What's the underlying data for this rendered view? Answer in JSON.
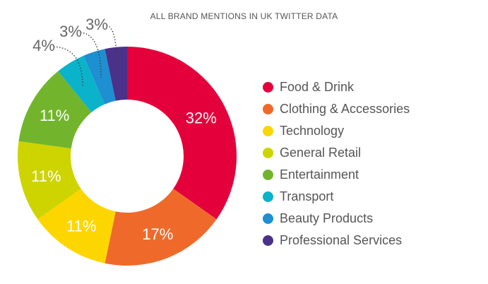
{
  "chart_data": {
    "type": "pie",
    "variant": "donut",
    "title": "ALL BRAND MENTIONS IN UK TWITTER DATA",
    "categories": [
      "Food & Drink",
      "Clothing & Accessories",
      "Technology",
      "General Retail",
      "Entertainment",
      "Transport",
      "Beauty Products",
      "Professional Services"
    ],
    "values": [
      32,
      17,
      11,
      11,
      11,
      4,
      3,
      3
    ],
    "labels": [
      "32%",
      "17%",
      "11%",
      "11%",
      "11%",
      "4%",
      "3%",
      "3%"
    ],
    "colors": [
      "#e4003a",
      "#ef6a2a",
      "#fdd600",
      "#cdd400",
      "#72b52c",
      "#0ab3c9",
      "#1e8fd1",
      "#4a3189"
    ],
    "legend_position": "right"
  }
}
